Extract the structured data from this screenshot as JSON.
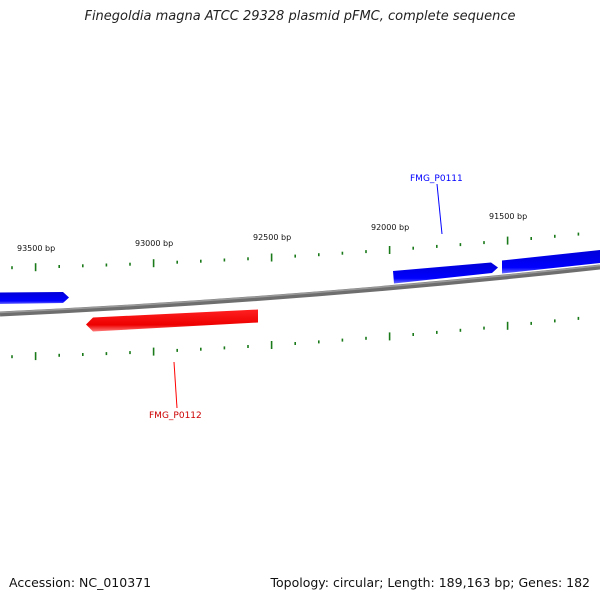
{
  "title": "Finegoldia magna ATCC 29328 plasmid pFMC, complete sequence",
  "footer": {
    "accession": "Accession: NC_010371",
    "summary": "Topology: circular; Length: 189,163 bp; Genes: 182"
  },
  "ruler": {
    "tick_labels": [
      "93500 bp",
      "93000 bp",
      "92500 bp",
      "92000 bp",
      "91500 bp"
    ]
  },
  "genes": [
    {
      "name": "FMG_P0111",
      "strand": "forward",
      "color": "#0000ff"
    },
    {
      "name": "FMG_P0112",
      "strand": "reverse",
      "color": "#ff0000"
    }
  ],
  "colors": {
    "backbone": "#808080",
    "ticks": "#1a7a1a",
    "forward_strand": "#0000ff",
    "reverse_strand": "#ff0000"
  }
}
